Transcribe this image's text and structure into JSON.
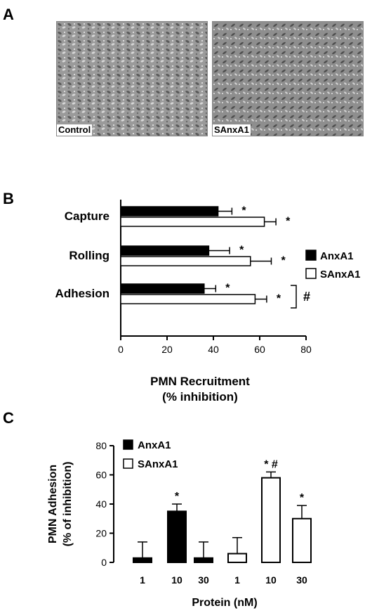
{
  "panel_a": {
    "letter": "A",
    "images": [
      {
        "label": "Control"
      },
      {
        "label": "SAnxA1"
      }
    ]
  },
  "panel_b": {
    "letter": "B",
    "xlabel_line1": "PMN Recruitment",
    "xlabel_line2": "(% inhibition)",
    "significance_bracket": "#"
  },
  "panel_c": {
    "letter": "C",
    "ylabel_line1": "PMN Adhesion",
    "ylabel_line2": "(% of inhibition)",
    "xlabel": "Protein (nM)"
  },
  "colors": {
    "anxa1": "#000000",
    "sanxa1": "#ffffff",
    "outline": "#000000"
  },
  "chart_data": [
    {
      "type": "bar",
      "orientation": "horizontal",
      "categories": [
        "Capture",
        "Rolling",
        "Adhesion"
      ],
      "series": [
        {
          "name": "AnxA1",
          "values": [
            42,
            38,
            36
          ],
          "errors": [
            6,
            9,
            5
          ],
          "significance": [
            "*",
            "*",
            "*"
          ]
        },
        {
          "name": "SAnxA1",
          "values": [
            62,
            56,
            58
          ],
          "errors": [
            5,
            9,
            5
          ],
          "significance": [
            "*",
            "*",
            "*"
          ]
        }
      ],
      "xlim": [
        0,
        80
      ],
      "xticks": [
        "0",
        "20",
        "40",
        "60",
        "80"
      ],
      "legend": "right"
    },
    {
      "type": "bar",
      "categories": [
        "1",
        "10",
        "30"
      ],
      "series": [
        {
          "name": "AnxA1",
          "values": [
            3,
            35,
            3
          ],
          "errors": [
            11,
            5,
            11
          ],
          "significance": [
            "",
            "*",
            ""
          ]
        },
        {
          "name": "SAnxA1",
          "values": [
            6,
            58,
            30
          ],
          "errors": [
            11,
            4,
            9
          ],
          "significance": [
            "",
            "* #",
            "*"
          ]
        }
      ],
      "ylim": [
        0,
        80
      ],
      "yticks": [
        "0",
        "20",
        "40",
        "60",
        "80"
      ],
      "legend": "top-left"
    }
  ]
}
